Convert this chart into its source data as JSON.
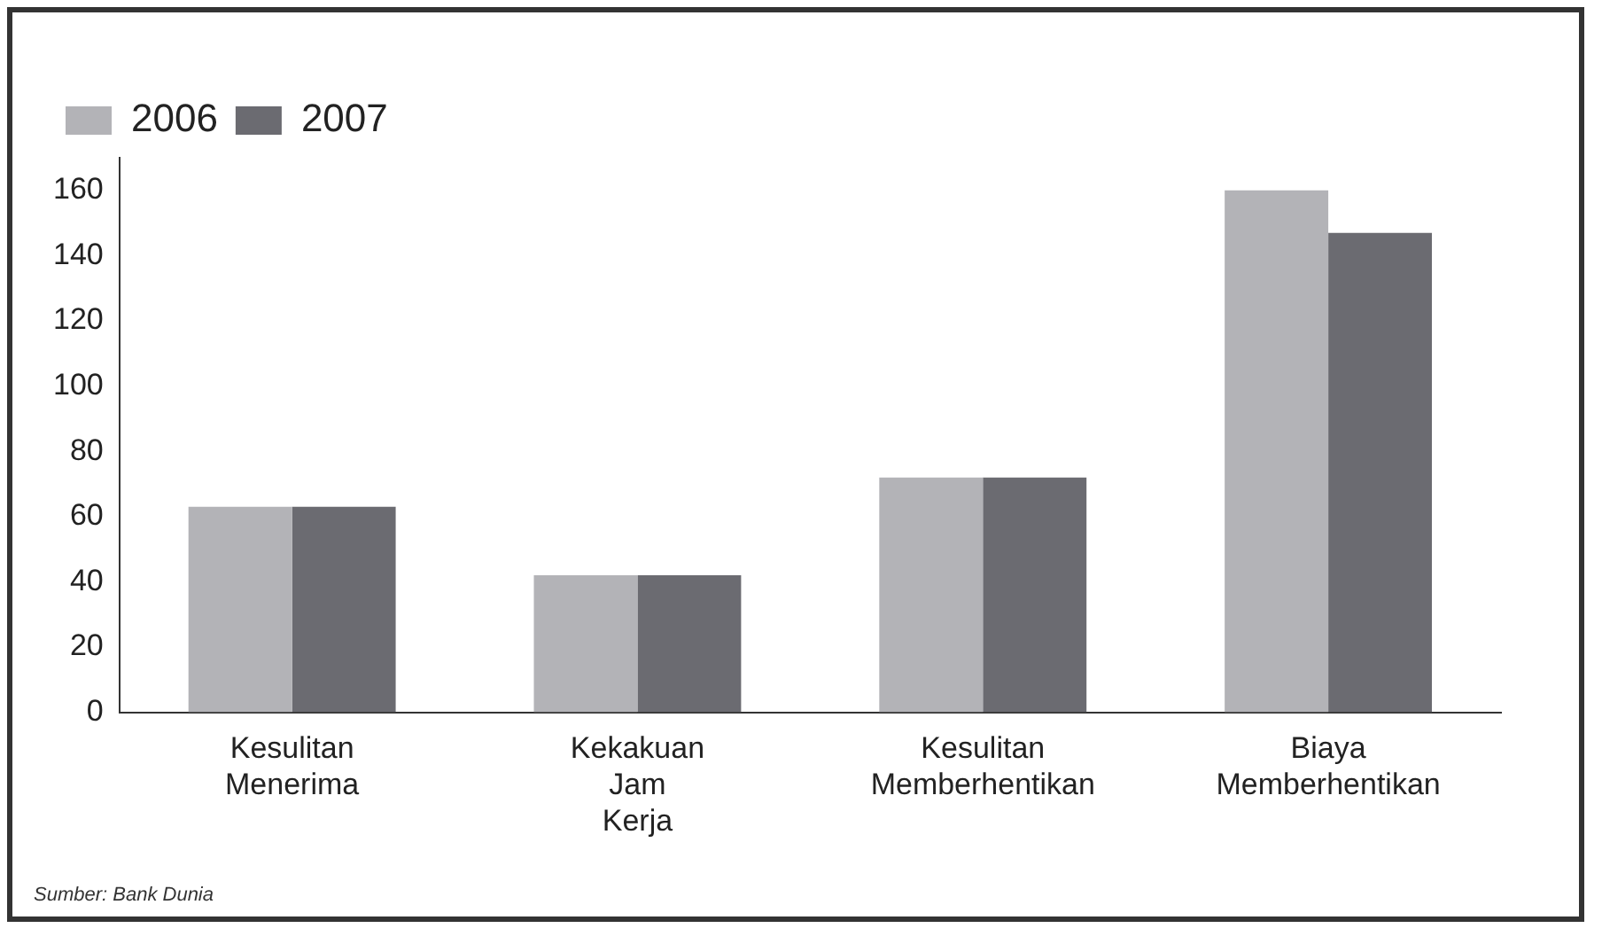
{
  "chart_data": {
    "type": "bar",
    "categories": [
      "Kesulitan Menerima",
      "Kekakuan Jam Kerja",
      "Kesulitan Memberhentikan",
      "Biaya Memberhentikan"
    ],
    "series": [
      {
        "name": "2006",
        "color": "#b3b3b7",
        "values": [
          63,
          42,
          72,
          160
        ]
      },
      {
        "name": "2007",
        "color": "#6b6b71",
        "values": [
          63,
          42,
          72,
          147
        ]
      }
    ],
    "ylim": [
      0,
      170
    ],
    "yticks": [
      0,
      20,
      40,
      60,
      80,
      100,
      120,
      140,
      160
    ],
    "grid": false,
    "legend": "top left",
    "annotations": [
      "Sumber: Bank Dunia"
    ]
  }
}
